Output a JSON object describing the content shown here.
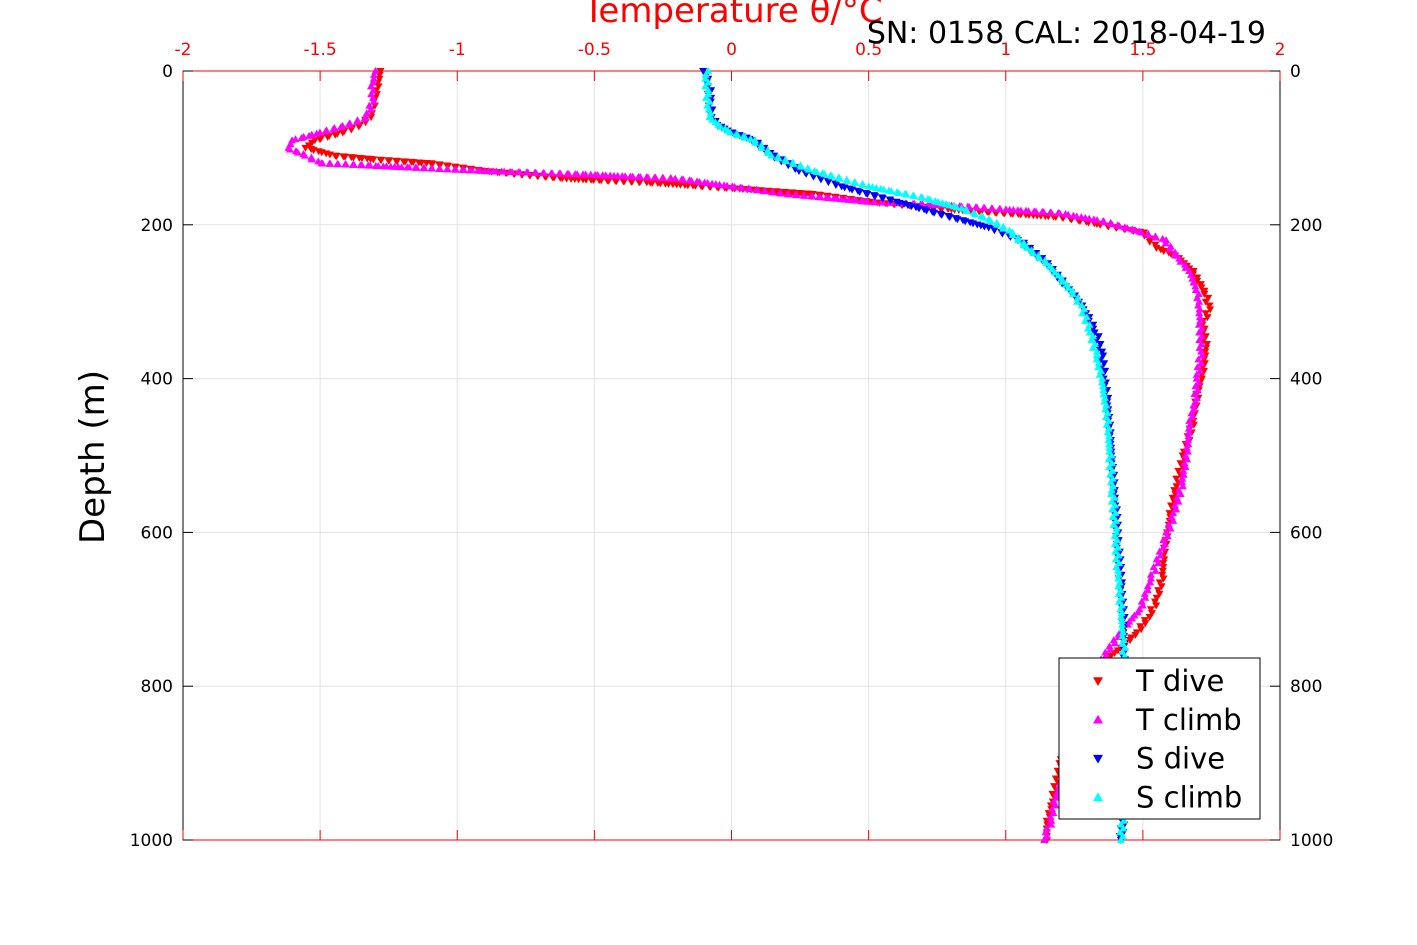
{
  "chart_data": {
    "type": "scatter",
    "title": "Temperature θ/°C",
    "caption": "SN: 0158  CAL: 2018-04-19",
    "ylabel": "Depth (m)",
    "xlim": [
      -2,
      2
    ],
    "ylim": [
      0,
      1000
    ],
    "y_reversed": true,
    "xticks": [
      "-2",
      "-1.5",
      "-1",
      "-0.5",
      "0",
      "0.5",
      "1",
      "1.5",
      "2"
    ],
    "yticks": [
      "0",
      "200",
      "400",
      "600",
      "800",
      "1000"
    ],
    "grid": true,
    "legend_position": "bottom-right",
    "series": [
      {
        "name": "T dive",
        "color": "#ff0000",
        "marker": "triangle-down",
        "x": [
          -1.28,
          -1.29,
          -1.3,
          -1.32,
          -1.35,
          -1.42,
          -1.52,
          -1.55,
          -1.45,
          -1.3,
          -1.1,
          -0.9,
          -0.6,
          -0.3,
          -0.1,
          0.1,
          0.3,
          0.5,
          0.8,
          1.0,
          1.2,
          1.35,
          1.5,
          1.55,
          1.62,
          1.68,
          1.73,
          1.74,
          1.72,
          1.73,
          1.72,
          1.7,
          1.68,
          1.65,
          1.62,
          1.6,
          1.58,
          1.57,
          1.55,
          1.52,
          1.48,
          1.42,
          1.35,
          1.3,
          1.25,
          1.2,
          1.17,
          1.15,
          1.15
        ],
        "y": [
          0,
          20,
          40,
          60,
          70,
          80,
          90,
          100,
          110,
          115,
          120,
          130,
          140,
          145,
          150,
          155,
          160,
          170,
          180,
          185,
          190,
          200,
          210,
          230,
          240,
          260,
          290,
          310,
          330,
          360,
          390,
          420,
          460,
          500,
          540,
          580,
          620,
          660,
          690,
          710,
          730,
          750,
          770,
          800,
          850,
          900,
          950,
          980,
          1000
        ]
      },
      {
        "name": "T climb",
        "color": "#ff00ff",
        "marker": "triangle-up",
        "x": [
          -1.3,
          -1.31,
          -1.31,
          -1.33,
          -1.4,
          -1.5,
          -1.6,
          -1.62,
          -1.55,
          -1.5,
          -1.2,
          -0.9,
          -0.5,
          -0.2,
          0.2,
          0.5,
          0.8,
          1.0,
          1.2,
          1.35,
          1.5,
          1.58,
          1.62,
          1.67,
          1.7,
          1.71,
          1.71,
          1.7,
          1.69,
          1.67,
          1.66,
          1.64,
          1.61,
          1.57,
          1.53,
          1.49,
          1.44,
          1.4,
          1.36,
          1.32,
          1.27,
          1.22,
          1.18,
          1.16,
          1.15,
          1.14
        ],
        "y": [
          0,
          20,
          40,
          60,
          70,
          80,
          90,
          100,
          110,
          120,
          125,
          130,
          135,
          140,
          160,
          170,
          175,
          180,
          185,
          195,
          210,
          220,
          240,
          260,
          290,
          330,
          370,
          400,
          430,
          460,
          500,
          540,
          580,
          620,
          660,
          700,
          720,
          740,
          760,
          790,
          850,
          900,
          950,
          980,
          990,
          1000
        ]
      },
      {
        "name": "S dive",
        "color": "#0000ff",
        "marker": "triangle-down",
        "x": [
          -0.1,
          -0.09,
          -0.08,
          -0.08,
          -0.07,
          -0.05,
          0.0,
          0.08,
          0.15,
          0.25,
          0.4,
          0.6,
          0.8,
          0.95,
          1.05,
          1.15,
          1.22,
          1.27,
          1.3,
          1.33,
          1.35,
          1.36,
          1.37,
          1.38,
          1.39,
          1.4,
          1.41,
          1.42,
          1.43,
          1.43,
          1.43,
          1.43,
          1.43,
          1.42
        ],
        "y": [
          0,
          10,
          20,
          40,
          60,
          70,
          80,
          90,
          110,
          130,
          150,
          170,
          190,
          205,
          220,
          250,
          280,
          300,
          320,
          340,
          370,
          400,
          430,
          470,
          520,
          570,
          620,
          670,
          720,
          770,
          850,
          920,
          970,
          1000
        ]
      },
      {
        "name": "S climb",
        "color": "#00ffff",
        "marker": "triangle-up",
        "x": [
          -0.09,
          -0.09,
          -0.09,
          -0.08,
          -0.08,
          -0.05,
          0.0,
          0.08,
          0.15,
          0.3,
          0.5,
          0.7,
          0.85,
          0.95,
          1.02,
          1.08,
          1.15,
          1.2,
          1.25,
          1.28,
          1.31,
          1.33,
          1.35,
          1.37,
          1.38,
          1.39,
          1.4,
          1.41,
          1.42,
          1.43,
          1.43,
          1.43,
          1.43,
          1.42
        ],
        "y": [
          0,
          10,
          30,
          50,
          60,
          70,
          80,
          90,
          110,
          130,
          150,
          165,
          180,
          195,
          210,
          230,
          250,
          270,
          290,
          310,
          340,
          370,
          400,
          450,
          500,
          550,
          600,
          650,
          700,
          750,
          820,
          900,
          960,
          1000
        ]
      }
    ]
  }
}
